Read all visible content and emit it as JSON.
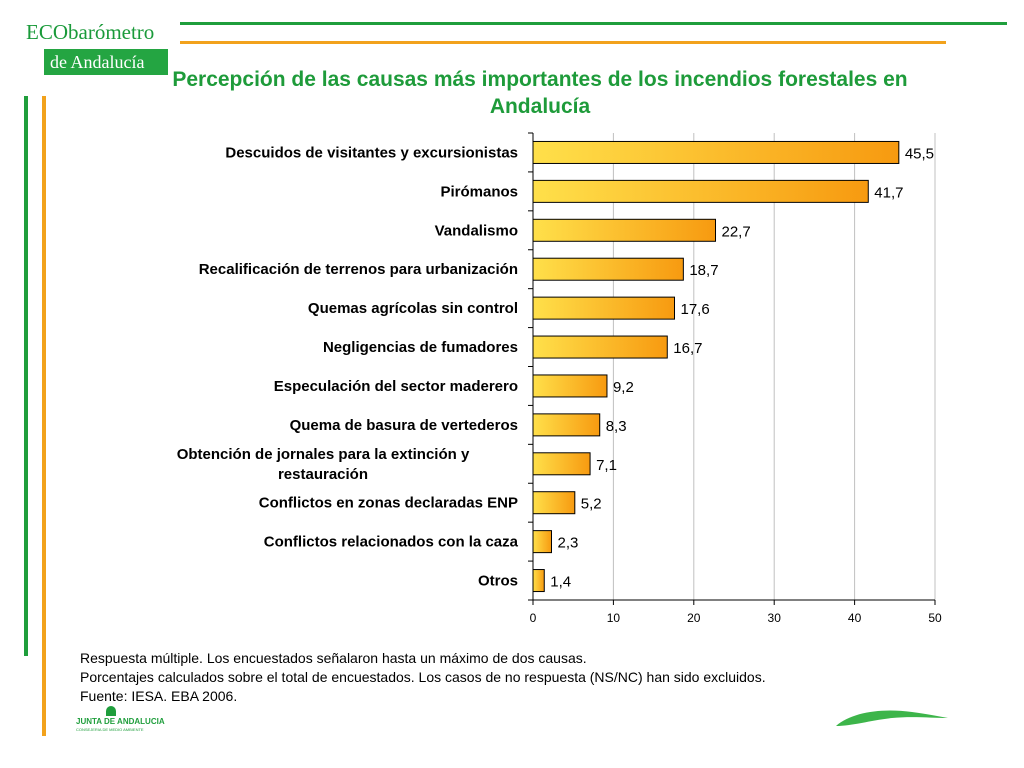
{
  "logo": {
    "eco": "ECO",
    "barometro": "barómetro",
    "region": "de Andalucía"
  },
  "footer": {
    "note_1": "Respuesta múltiple. Los encuestados señalaron hasta un máximo de dos causas.",
    "note_2": "Porcentajes calculados sobre el total de encuestados. Los casos de no respuesta (NS/NC) han sido excluidos.",
    "note_3": "Fuente: IESA. EBA 2006.",
    "institution_name": "JUNTA DE ANDALUCIA",
    "institution_sub": "CONSEJERIA DE MEDIO AMBIENTE"
  },
  "colors": {
    "green": "#1f9e3c",
    "orange": "#f2a21c",
    "bar_light": "#ffe04a",
    "bar_dark": "#f79a10",
    "gridline": "#c0c0c0"
  },
  "chart_data": {
    "type": "bar",
    "orientation": "horizontal",
    "title": "Percepción de las causas más importantes de los incendios forestales en Andalucía",
    "categories": [
      "Descuidos de visitantes y excursionistas",
      "Pirómanos",
      "Vandalismo",
      "Recalificación de terrenos para urbanización",
      "Quemas agrícolas sin control",
      "Negligencias de fumadores",
      "Especulación del sector maderero",
      "Quema de basura de vertederos",
      "Obtención de jornales para la extinción y restauración",
      "Conflictos en zonas declaradas ENP",
      "Conflictos relacionados con la caza",
      "Otros"
    ],
    "values": [
      45.5,
      41.7,
      22.7,
      18.7,
      17.6,
      16.7,
      9.2,
      8.3,
      7.1,
      5.2,
      2.3,
      1.4
    ],
    "value_labels": [
      "45,5",
      "41,7",
      "22,7",
      "18,7",
      "17,6",
      "16,7",
      "9,2",
      "8,3",
      "7,1",
      "5,2",
      "2,3",
      "1,4"
    ],
    "xlim": [
      0,
      50
    ],
    "xticks": [
      0,
      10,
      20,
      30,
      40,
      50
    ],
    "xlabel": "",
    "ylabel": "",
    "grid": "vertical",
    "legend": "none"
  }
}
